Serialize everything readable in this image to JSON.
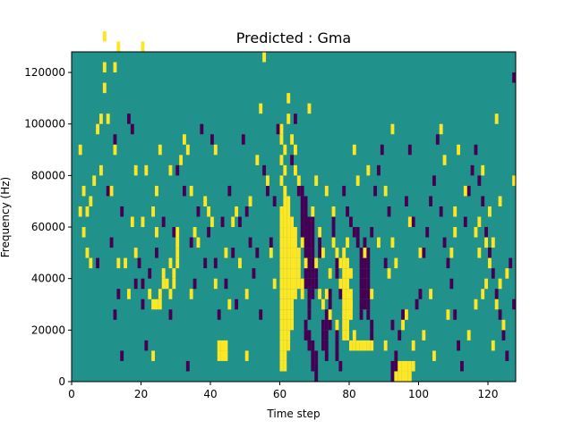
{
  "chart_data": {
    "type": "heatmap",
    "title": "Predicted : Gma",
    "xlabel": "Time step",
    "ylabel": "Frequency (Hz)",
    "xlim": [
      0,
      128
    ],
    "ylim": [
      0,
      128000
    ],
    "x_ticks": [
      0,
      20,
      40,
      60,
      80,
      100,
      120
    ],
    "y_ticks": [
      0,
      20000,
      40000,
      60000,
      80000,
      100000,
      120000
    ],
    "x_tick_labels": [
      "0",
      "20",
      "40",
      "60",
      "80",
      "100",
      "120"
    ],
    "y_tick_labels": [
      "0",
      "20000",
      "40000",
      "60000",
      "80000",
      "100000",
      "120000"
    ],
    "bin_width_x": 1,
    "bin_height_y": 4000,
    "colors": {
      "background": "#21918c",
      "low": "#440154",
      "high": "#fde725"
    },
    "cell_values_legend": {
      "background": 0,
      "low": -1,
      "high": 1
    },
    "high_cells": [
      [
        2,
        16
      ],
      [
        4,
        16
      ],
      [
        2,
        22
      ],
      [
        3,
        18
      ],
      [
        3,
        14
      ],
      [
        4,
        12
      ],
      [
        5,
        11
      ],
      [
        5,
        17
      ],
      [
        6,
        19
      ],
      [
        7,
        24
      ],
      [
        8,
        25
      ],
      [
        8,
        20
      ],
      [
        9,
        28
      ],
      [
        9,
        30
      ],
      [
        9,
        33
      ],
      [
        10,
        25
      ],
      [
        11,
        18
      ],
      [
        12,
        22
      ],
      [
        12,
        30
      ],
      [
        13,
        32
      ],
      [
        13,
        11
      ],
      [
        15,
        11
      ],
      [
        16,
        8
      ],
      [
        17,
        15
      ],
      [
        18,
        12
      ],
      [
        18,
        20
      ],
      [
        20,
        15
      ],
      [
        20,
        32
      ],
      [
        21,
        20
      ],
      [
        22,
        8
      ],
      [
        23,
        2
      ],
      [
        23,
        16
      ],
      [
        24,
        14
      ],
      [
        24,
        18
      ],
      [
        25,
        7
      ],
      [
        25,
        22
      ],
      [
        26,
        10
      ],
      [
        28,
        11
      ],
      [
        28,
        20
      ],
      [
        29,
        10
      ],
      [
        30,
        11
      ],
      [
        30,
        12
      ],
      [
        31,
        21
      ],
      [
        32,
        23
      ],
      [
        33,
        22
      ],
      [
        34,
        8
      ],
      [
        34,
        18
      ],
      [
        35,
        14
      ],
      [
        36,
        13
      ],
      [
        38,
        17
      ],
      [
        39,
        16
      ],
      [
        40,
        15
      ],
      [
        41,
        9
      ],
      [
        41,
        22
      ],
      [
        44,
        2
      ],
      [
        44,
        12
      ],
      [
        45,
        7
      ],
      [
        46,
        15
      ],
      [
        47,
        16
      ],
      [
        48,
        11
      ],
      [
        50,
        2
      ],
      [
        50,
        8
      ],
      [
        51,
        17
      ],
      [
        53,
        21
      ],
      [
        54,
        26
      ],
      [
        55,
        31
      ],
      [
        56,
        19
      ],
      [
        57,
        12
      ],
      [
        58,
        9
      ],
      [
        60,
        19
      ],
      [
        60,
        21
      ],
      [
        60,
        23
      ],
      [
        60,
        24
      ],
      [
        61,
        20
      ],
      [
        61,
        22
      ],
      [
        62,
        25
      ],
      [
        62,
        27
      ],
      [
        63,
        23
      ],
      [
        64,
        20
      ],
      [
        64,
        22
      ],
      [
        65,
        19
      ],
      [
        66,
        13
      ],
      [
        67,
        11
      ],
      [
        68,
        26
      ],
      [
        69,
        16
      ],
      [
        70,
        19
      ],
      [
        71,
        14
      ],
      [
        72,
        12
      ],
      [
        73,
        8
      ],
      [
        73,
        18
      ],
      [
        74,
        6
      ],
      [
        75,
        13
      ],
      [
        75,
        16
      ],
      [
        76,
        5
      ],
      [
        77,
        9
      ],
      [
        78,
        11
      ],
      [
        79,
        4
      ],
      [
        80,
        7
      ],
      [
        80,
        10
      ],
      [
        81,
        22
      ],
      [
        82,
        19
      ],
      [
        84,
        12
      ],
      [
        85,
        20
      ],
      [
        86,
        8
      ],
      [
        88,
        13
      ],
      [
        90,
        18
      ],
      [
        91,
        10
      ],
      [
        92,
        24
      ],
      [
        93,
        11
      ],
      [
        95,
        5
      ],
      [
        96,
        6
      ],
      [
        97,
        15
      ],
      [
        98,
        3
      ],
      [
        100,
        12
      ],
      [
        101,
        4
      ],
      [
        103,
        8
      ],
      [
        106,
        24
      ],
      [
        107,
        21
      ],
      [
        109,
        12
      ],
      [
        110,
        16
      ],
      [
        111,
        22
      ],
      [
        113,
        18
      ],
      [
        114,
        4
      ],
      [
        116,
        7
      ],
      [
        117,
        15
      ],
      [
        118,
        20
      ],
      [
        119,
        9
      ],
      [
        120,
        11
      ],
      [
        121,
        13
      ],
      [
        122,
        25
      ],
      [
        123,
        17
      ],
      [
        124,
        5
      ],
      [
        125,
        10
      ],
      [
        127,
        19
      ],
      [
        60,
        1
      ],
      [
        60,
        2
      ],
      [
        60,
        3
      ],
      [
        60,
        4
      ],
      [
        60,
        5
      ],
      [
        60,
        6
      ],
      [
        60,
        7
      ],
      [
        60,
        8
      ],
      [
        60,
        9
      ],
      [
        60,
        10
      ],
      [
        60,
        11
      ],
      [
        60,
        12
      ],
      [
        60,
        13
      ],
      [
        60,
        14
      ],
      [
        60,
        15
      ],
      [
        60,
        16
      ],
      [
        61,
        1
      ],
      [
        61,
        2
      ],
      [
        61,
        3
      ],
      [
        61,
        4
      ],
      [
        61,
        5
      ],
      [
        61,
        6
      ],
      [
        61,
        7
      ],
      [
        61,
        8
      ],
      [
        61,
        9
      ],
      [
        61,
        10
      ],
      [
        61,
        11
      ],
      [
        61,
        12
      ],
      [
        61,
        13
      ],
      [
        61,
        14
      ],
      [
        61,
        15
      ],
      [
        61,
        16
      ],
      [
        61,
        17
      ],
      [
        61,
        18
      ],
      [
        62,
        3
      ],
      [
        62,
        4
      ],
      [
        62,
        5
      ],
      [
        62,
        6
      ],
      [
        62,
        7
      ],
      [
        62,
        8
      ],
      [
        62,
        9
      ],
      [
        62,
        10
      ],
      [
        62,
        11
      ],
      [
        62,
        12
      ],
      [
        62,
        13
      ],
      [
        62,
        14
      ],
      [
        62,
        15
      ],
      [
        62,
        16
      ],
      [
        62,
        17
      ],
      [
        63,
        5
      ],
      [
        63,
        6
      ],
      [
        63,
        7
      ],
      [
        63,
        8
      ],
      [
        63,
        9
      ],
      [
        63,
        10
      ],
      [
        63,
        11
      ],
      [
        63,
        12
      ],
      [
        63,
        13
      ],
      [
        63,
        14
      ],
      [
        63,
        15
      ],
      [
        64,
        8
      ],
      [
        64,
        9
      ],
      [
        64,
        10
      ],
      [
        64,
        11
      ],
      [
        64,
        12
      ],
      [
        64,
        13
      ],
      [
        64,
        14
      ],
      [
        65,
        9
      ],
      [
        65,
        10
      ],
      [
        65,
        11
      ],
      [
        65,
        12
      ],
      [
        66,
        8
      ],
      [
        66,
        9
      ],
      [
        78,
        4
      ],
      [
        78,
        5
      ],
      [
        78,
        6
      ],
      [
        78,
        7
      ],
      [
        78,
        8
      ],
      [
        78,
        9
      ],
      [
        78,
        10
      ],
      [
        79,
        5
      ],
      [
        79,
        6
      ],
      [
        79,
        7
      ],
      [
        79,
        8
      ],
      [
        79,
        9
      ],
      [
        79,
        10
      ],
      [
        79,
        11
      ],
      [
        80,
        6
      ],
      [
        80,
        7
      ],
      [
        80,
        8
      ],
      [
        81,
        3
      ],
      [
        82,
        3
      ],
      [
        83,
        3
      ],
      [
        84,
        3
      ],
      [
        85,
        3
      ],
      [
        93,
        0
      ],
      [
        94,
        0
      ],
      [
        95,
        0
      ],
      [
        96,
        0
      ],
      [
        97,
        0
      ],
      [
        94,
        1
      ],
      [
        95,
        1
      ],
      [
        96,
        1
      ],
      [
        97,
        1
      ],
      [
        98,
        1
      ],
      [
        42,
        2
      ],
      [
        42,
        3
      ],
      [
        43,
        2
      ],
      [
        43,
        3
      ],
      [
        44,
        3
      ],
      [
        23,
        7
      ],
      [
        24,
        7
      ],
      [
        25,
        8
      ],
      [
        26,
        9
      ],
      [
        27,
        9
      ],
      [
        28,
        8
      ],
      [
        29,
        9
      ],
      [
        30,
        13
      ],
      [
        30,
        14
      ],
      [
        70,
        11
      ],
      [
        71,
        8
      ],
      [
        72,
        7
      ],
      [
        74,
        10
      ],
      [
        76,
        12
      ],
      [
        77,
        11
      ],
      [
        78,
        12
      ],
      [
        79,
        13
      ],
      [
        80,
        3
      ],
      [
        81,
        4
      ],
      [
        86,
        3
      ],
      [
        90,
        3
      ],
      [
        92,
        13
      ],
      [
        104,
        2
      ],
      [
        108,
        6
      ],
      [
        110,
        14
      ],
      [
        116,
        14
      ],
      [
        117,
        12
      ],
      [
        118,
        8
      ],
      [
        119,
        13
      ],
      [
        120,
        16
      ],
      [
        121,
        3
      ],
      [
        122,
        7
      ],
      [
        123,
        9
      ]
    ],
    "low_cells": [
      [
        17,
        24
      ],
      [
        12,
        23
      ],
      [
        14,
        16
      ],
      [
        20,
        9
      ],
      [
        7,
        11
      ],
      [
        10,
        18
      ],
      [
        11,
        13
      ],
      [
        12,
        6
      ],
      [
        13,
        8
      ],
      [
        14,
        2
      ],
      [
        16,
        25
      ],
      [
        18,
        9
      ],
      [
        19,
        11
      ],
      [
        20,
        7
      ],
      [
        21,
        3
      ],
      [
        22,
        10
      ],
      [
        24,
        12
      ],
      [
        26,
        15
      ],
      [
        28,
        6
      ],
      [
        29,
        14
      ],
      [
        30,
        20
      ],
      [
        31,
        21
      ],
      [
        32,
        18
      ],
      [
        33,
        1
      ],
      [
        34,
        13
      ],
      [
        35,
        9
      ],
      [
        36,
        16
      ],
      [
        37,
        24
      ],
      [
        38,
        11
      ],
      [
        39,
        14
      ],
      [
        40,
        23
      ],
      [
        41,
        11
      ],
      [
        42,
        6
      ],
      [
        43,
        15
      ],
      [
        44,
        9
      ],
      [
        45,
        18
      ],
      [
        46,
        12
      ],
      [
        47,
        7
      ],
      [
        48,
        15
      ],
      [
        49,
        23
      ],
      [
        50,
        16
      ],
      [
        51,
        13
      ],
      [
        52,
        10
      ],
      [
        53,
        12
      ],
      [
        54,
        6
      ],
      [
        55,
        20
      ],
      [
        56,
        18
      ],
      [
        57,
        13
      ],
      [
        58,
        17
      ],
      [
        59,
        24
      ],
      [
        60,
        14
      ],
      [
        62,
        3
      ],
      [
        63,
        21
      ],
      [
        64,
        25
      ],
      [
        65,
        18
      ],
      [
        66,
        14
      ],
      [
        66,
        15
      ],
      [
        66,
        16
      ],
      [
        66,
        17
      ],
      [
        66,
        18
      ],
      [
        67,
        4
      ],
      [
        67,
        5
      ],
      [
        67,
        9
      ],
      [
        67,
        10
      ],
      [
        67,
        11
      ],
      [
        67,
        12
      ],
      [
        67,
        13
      ],
      [
        67,
        14
      ],
      [
        67,
        15
      ],
      [
        67,
        16
      ],
      [
        67,
        17
      ],
      [
        68,
        3
      ],
      [
        68,
        4
      ],
      [
        68,
        6
      ],
      [
        68,
        7
      ],
      [
        68,
        8
      ],
      [
        68,
        9
      ],
      [
        68,
        10
      ],
      [
        68,
        11
      ],
      [
        68,
        12
      ],
      [
        68,
        13
      ],
      [
        68,
        14
      ],
      [
        68,
        15
      ],
      [
        69,
        1
      ],
      [
        69,
        2
      ],
      [
        69,
        3
      ],
      [
        69,
        8
      ],
      [
        69,
        9
      ],
      [
        69,
        10
      ],
      [
        69,
        11
      ],
      [
        69,
        12
      ],
      [
        69,
        13
      ],
      [
        69,
        14
      ],
      [
        69,
        15
      ],
      [
        70,
        0
      ],
      [
        70,
        1
      ],
      [
        70,
        2
      ],
      [
        70,
        9
      ],
      [
        70,
        10
      ],
      [
        71,
        12
      ],
      [
        71,
        13
      ],
      [
        71,
        14
      ],
      [
        72,
        3
      ],
      [
        72,
        4
      ],
      [
        72,
        5
      ],
      [
        73,
        2
      ],
      [
        73,
        3
      ],
      [
        73,
        4
      ],
      [
        73,
        5
      ],
      [
        73,
        6
      ],
      [
        74,
        5
      ],
      [
        74,
        6
      ],
      [
        74,
        7
      ],
      [
        74,
        8
      ],
      [
        75,
        14
      ],
      [
        75,
        15
      ],
      [
        76,
        2
      ],
      [
        76,
        3
      ],
      [
        76,
        4
      ],
      [
        76,
        10
      ],
      [
        76,
        11
      ],
      [
        77,
        1
      ],
      [
        77,
        8
      ],
      [
        77,
        9
      ],
      [
        78,
        18
      ],
      [
        79,
        16
      ],
      [
        80,
        15
      ],
      [
        81,
        14
      ],
      [
        82,
        13
      ],
      [
        82,
        14
      ],
      [
        83,
        6
      ],
      [
        83,
        7
      ],
      [
        83,
        8
      ],
      [
        83,
        9
      ],
      [
        83,
        10
      ],
      [
        83,
        11
      ],
      [
        83,
        12
      ],
      [
        84,
        7
      ],
      [
        84,
        8
      ],
      [
        84,
        9
      ],
      [
        84,
        10
      ],
      [
        84,
        11
      ],
      [
        84,
        12
      ],
      [
        84,
        13
      ],
      [
        85,
        6
      ],
      [
        85,
        7
      ],
      [
        85,
        8
      ],
      [
        85,
        9
      ],
      [
        85,
        10
      ],
      [
        85,
        11
      ],
      [
        85,
        12
      ],
      [
        86,
        4
      ],
      [
        86,
        5
      ],
      [
        86,
        14
      ],
      [
        87,
        18
      ],
      [
        88,
        20
      ],
      [
        89,
        22
      ],
      [
        90,
        11
      ],
      [
        91,
        16
      ],
      [
        92,
        0
      ],
      [
        92,
        1
      ],
      [
        92,
        5
      ],
      [
        93,
        1
      ],
      [
        93,
        2
      ],
      [
        94,
        4
      ],
      [
        95,
        6
      ],
      [
        96,
        17
      ],
      [
        97,
        22
      ],
      [
        98,
        15
      ],
      [
        99,
        7
      ],
      [
        100,
        8
      ],
      [
        101,
        12
      ],
      [
        102,
        14
      ],
      [
        103,
        17
      ],
      [
        104,
        19
      ],
      [
        105,
        23
      ],
      [
        106,
        16
      ],
      [
        107,
        13
      ],
      [
        108,
        11
      ],
      [
        109,
        9
      ],
      [
        110,
        6
      ],
      [
        111,
        3
      ],
      [
        112,
        1
      ],
      [
        113,
        15
      ],
      [
        114,
        18
      ],
      [
        115,
        20
      ],
      [
        116,
        22
      ],
      [
        117,
        19
      ],
      [
        118,
        17
      ],
      [
        119,
        14
      ],
      [
        120,
        12
      ],
      [
        121,
        10
      ],
      [
        122,
        8
      ],
      [
        123,
        6
      ],
      [
        124,
        4
      ],
      [
        125,
        2
      ],
      [
        126,
        11
      ],
      [
        127,
        7
      ],
      [
        127,
        29
      ]
    ]
  }
}
